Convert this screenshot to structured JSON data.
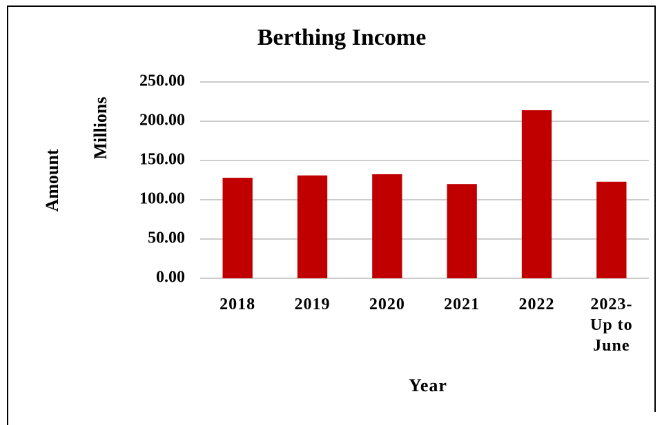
{
  "chart_data": {
    "type": "bar",
    "title": "Berthing Income",
    "ylabel": "Amount",
    "yunits": "Millions",
    "xlabel": "Year",
    "categories": [
      "2018",
      "2019",
      "2020",
      "2021",
      "2022",
      "2023-Up to June"
    ],
    "values": [
      128,
      131,
      132.5,
      120,
      214,
      123
    ],
    "color": "#c00000",
    "ylim": [
      0,
      250
    ],
    "yticks": [
      {
        "value": 0,
        "label": "0.00"
      },
      {
        "value": 50,
        "label": "50.00"
      },
      {
        "value": 100,
        "label": "100.00"
      },
      {
        "value": 150,
        "label": "150.00"
      },
      {
        "value": 200,
        "label": "200.00"
      },
      {
        "value": 250,
        "label": "250.00"
      }
    ],
    "grid": true
  }
}
